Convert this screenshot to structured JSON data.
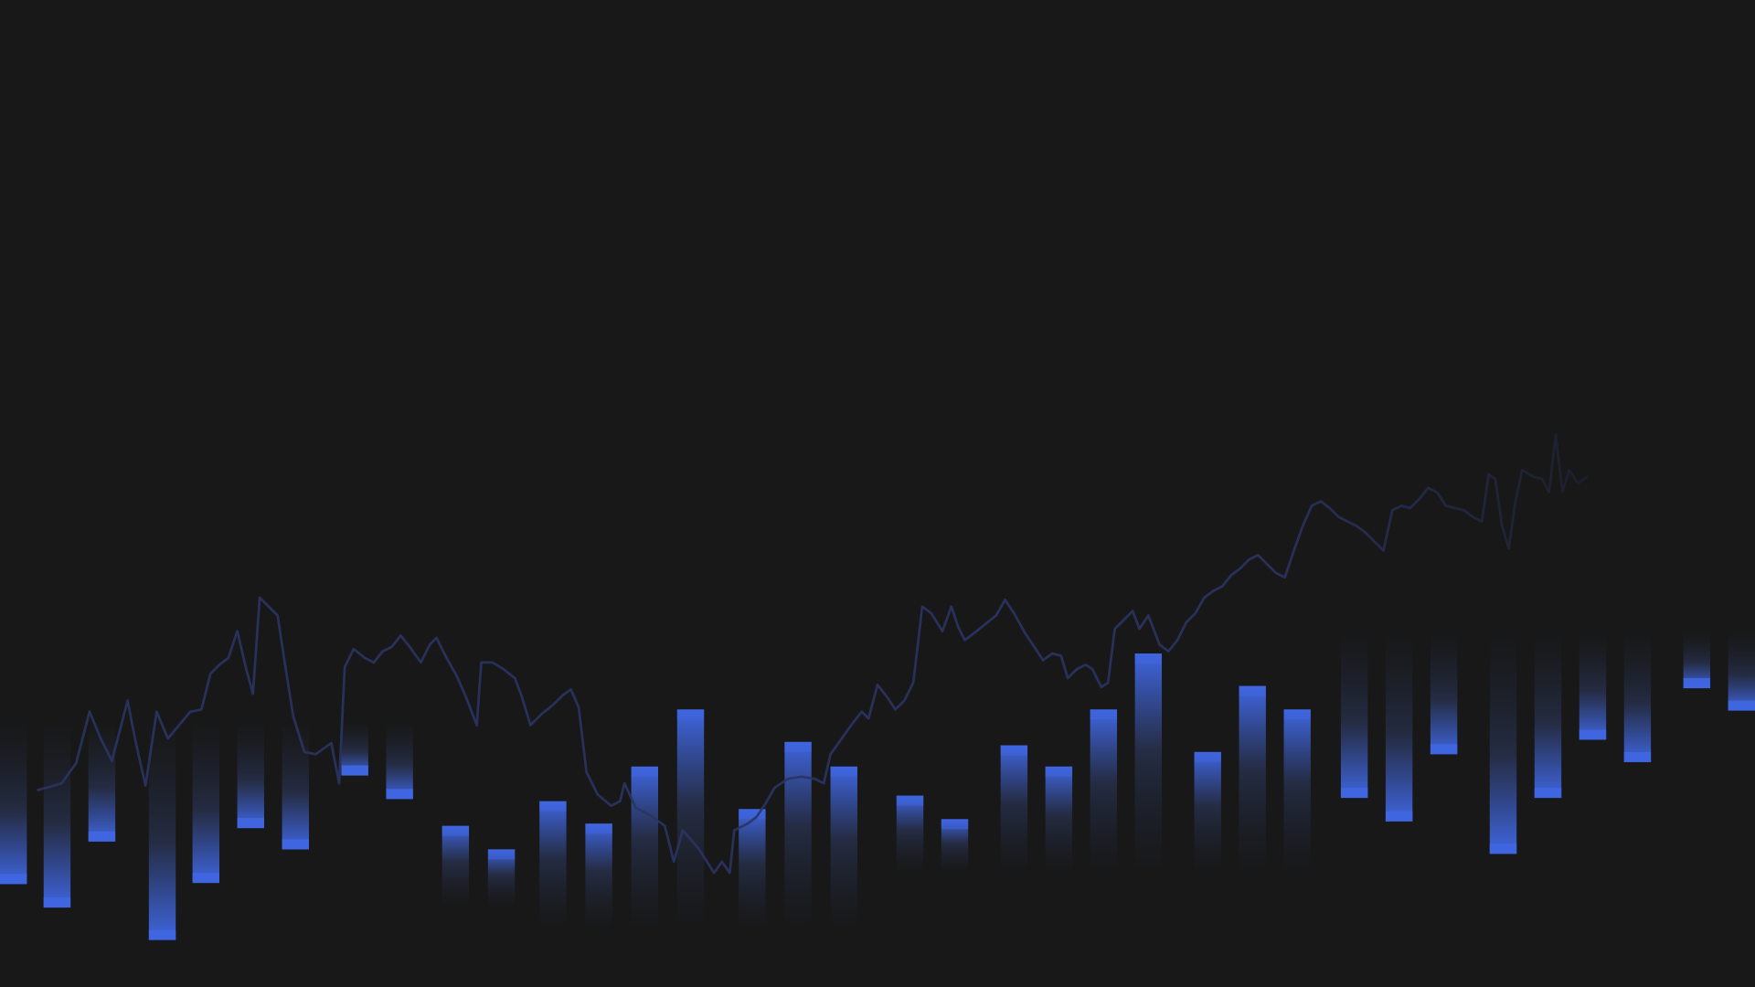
{
  "colors": {
    "background": "#181818",
    "bar_accent": "#3f66e0",
    "bar_fade": "#1f2433",
    "line": "#2a3463"
  },
  "chart_data": {
    "type": "bar",
    "title": "",
    "xlabel": "",
    "ylabel": "",
    "grid": false,
    "legend": "none",
    "x_range": [
      0,
      1568
    ],
    "y_range": [
      0,
      882
    ],
    "bars": [
      {
        "x": 12,
        "top": 645,
        "bottom": 790,
        "accent": "bottom"
      },
      {
        "x": 51,
        "top": 645,
        "bottom": 811,
        "accent": "bottom"
      },
      {
        "x": 91,
        "top": 645,
        "bottom": 752,
        "accent": "bottom"
      },
      {
        "x": 145,
        "top": 645,
        "bottom": 840,
        "accent": "bottom"
      },
      {
        "x": 184,
        "top": 645,
        "bottom": 789,
        "accent": "bottom"
      },
      {
        "x": 224,
        "top": 645,
        "bottom": 740,
        "accent": "bottom"
      },
      {
        "x": 264,
        "top": 645,
        "bottom": 759,
        "accent": "bottom"
      },
      {
        "x": 317,
        "top": 645,
        "bottom": 693,
        "accent": "bottom"
      },
      {
        "x": 357,
        "top": 645,
        "bottom": 714,
        "accent": "bottom"
      },
      {
        "x": 407,
        "top": 738,
        "bottom": 810,
        "accent": "top"
      },
      {
        "x": 448,
        "top": 759,
        "bottom": 810,
        "accent": "top"
      },
      {
        "x": 494,
        "top": 716,
        "bottom": 830,
        "accent": "top"
      },
      {
        "x": 535,
        "top": 736,
        "bottom": 830,
        "accent": "top"
      },
      {
        "x": 576,
        "top": 685,
        "bottom": 830,
        "accent": "top"
      },
      {
        "x": 617,
        "top": 634,
        "bottom": 830,
        "accent": "top"
      },
      {
        "x": 672,
        "top": 723,
        "bottom": 830,
        "accent": "top"
      },
      {
        "x": 713,
        "top": 663,
        "bottom": 830,
        "accent": "top"
      },
      {
        "x": 754,
        "top": 685,
        "bottom": 830,
        "accent": "top"
      },
      {
        "x": 813,
        "top": 711,
        "bottom": 780,
        "accent": "top"
      },
      {
        "x": 853,
        "top": 732,
        "bottom": 780,
        "accent": "top"
      },
      {
        "x": 906,
        "top": 666,
        "bottom": 780,
        "accent": "top"
      },
      {
        "x": 946,
        "top": 685,
        "bottom": 780,
        "accent": "top"
      },
      {
        "x": 986,
        "top": 634,
        "bottom": 780,
        "accent": "top"
      },
      {
        "x": 1026,
        "top": 584,
        "bottom": 780,
        "accent": "top"
      },
      {
        "x": 1079,
        "top": 672,
        "bottom": 780,
        "accent": "top"
      },
      {
        "x": 1119,
        "top": 613,
        "bottom": 780,
        "accent": "top"
      },
      {
        "x": 1159,
        "top": 634,
        "bottom": 780,
        "accent": "top"
      },
      {
        "x": 1210,
        "top": 565,
        "bottom": 713,
        "accent": "bottom"
      },
      {
        "x": 1250,
        "top": 565,
        "bottom": 734,
        "accent": "bottom"
      },
      {
        "x": 1290,
        "top": 565,
        "bottom": 674,
        "accent": "bottom"
      },
      {
        "x": 1343,
        "top": 565,
        "bottom": 763,
        "accent": "bottom"
      },
      {
        "x": 1383,
        "top": 565,
        "bottom": 713,
        "accent": "bottom"
      },
      {
        "x": 1423,
        "top": 565,
        "bottom": 661,
        "accent": "bottom"
      },
      {
        "x": 1463,
        "top": 565,
        "bottom": 681,
        "accent": "bottom"
      },
      {
        "x": 1516,
        "top": 565,
        "bottom": 615,
        "accent": "bottom"
      },
      {
        "x": 1556,
        "top": 565,
        "bottom": 635,
        "accent": "bottom"
      }
    ],
    "line": [
      [
        34,
        706
      ],
      [
        55,
        700
      ],
      [
        68,
        682
      ],
      [
        80,
        636
      ],
      [
        90,
        660
      ],
      [
        100,
        680
      ],
      [
        114,
        626
      ],
      [
        121,
        662
      ],
      [
        130,
        702
      ],
      [
        140,
        636
      ],
      [
        150,
        660
      ],
      [
        160,
        648
      ],
      [
        170,
        636
      ],
      [
        180,
        634
      ],
      [
        188,
        602
      ],
      [
        196,
        594
      ],
      [
        204,
        588
      ],
      [
        212,
        564
      ],
      [
        220,
        598
      ],
      [
        226,
        620
      ],
      [
        232,
        534
      ],
      [
        240,
        542
      ],
      [
        248,
        550
      ],
      [
        255,
        596
      ],
      [
        262,
        640
      ],
      [
        272,
        672
      ],
      [
        282,
        674
      ],
      [
        296,
        664
      ],
      [
        303,
        700
      ],
      [
        308,
        596
      ],
      [
        316,
        580
      ],
      [
        326,
        588
      ],
      [
        334,
        592
      ],
      [
        342,
        582
      ],
      [
        350,
        578
      ],
      [
        358,
        568
      ],
      [
        366,
        578
      ],
      [
        376,
        592
      ],
      [
        384,
        576
      ],
      [
        390,
        570
      ],
      [
        398,
        586
      ],
      [
        408,
        604
      ],
      [
        416,
        622
      ],
      [
        426,
        648
      ],
      [
        430,
        592
      ],
      [
        440,
        592
      ],
      [
        450,
        598
      ],
      [
        460,
        606
      ],
      [
        466,
        622
      ],
      [
        474,
        648
      ],
      [
        484,
        638
      ],
      [
        494,
        630
      ],
      [
        502,
        622
      ],
      [
        510,
        616
      ],
      [
        517,
        632
      ],
      [
        524,
        690
      ],
      [
        534,
        710
      ],
      [
        546,
        720
      ],
      [
        554,
        716
      ],
      [
        558,
        700
      ],
      [
        568,
        722
      ],
      [
        580,
        728
      ],
      [
        594,
        738
      ],
      [
        602,
        770
      ],
      [
        610,
        742
      ],
      [
        624,
        758
      ],
      [
        638,
        780
      ],
      [
        645,
        770
      ],
      [
        652,
        780
      ],
      [
        656,
        742
      ],
      [
        668,
        736
      ],
      [
        676,
        730
      ],
      [
        684,
        718
      ],
      [
        692,
        704
      ],
      [
        704,
        696
      ],
      [
        716,
        694
      ],
      [
        728,
        696
      ],
      [
        736,
        700
      ],
      [
        742,
        674
      ],
      [
        752,
        660
      ],
      [
        762,
        646
      ],
      [
        770,
        636
      ],
      [
        776,
        642
      ],
      [
        784,
        612
      ],
      [
        792,
        622
      ],
      [
        800,
        634
      ],
      [
        808,
        626
      ],
      [
        816,
        610
      ],
      [
        824,
        542
      ],
      [
        832,
        548
      ],
      [
        842,
        564
      ],
      [
        850,
        542
      ],
      [
        856,
        560
      ],
      [
        862,
        572
      ],
      [
        870,
        566
      ],
      [
        880,
        558
      ],
      [
        890,
        550
      ],
      [
        898,
        536
      ],
      [
        906,
        548
      ],
      [
        916,
        566
      ],
      [
        924,
        578
      ],
      [
        932,
        590
      ],
      [
        940,
        584
      ],
      [
        948,
        586
      ],
      [
        954,
        606
      ],
      [
        962,
        598
      ],
      [
        970,
        594
      ],
      [
        976,
        598
      ],
      [
        984,
        614
      ],
      [
        990,
        610
      ],
      [
        996,
        562
      ],
      [
        1004,
        554
      ],
      [
        1012,
        546
      ],
      [
        1018,
        562
      ],
      [
        1026,
        550
      ],
      [
        1036,
        576
      ],
      [
        1044,
        582
      ],
      [
        1052,
        572
      ],
      [
        1060,
        556
      ],
      [
        1068,
        548
      ],
      [
        1076,
        534
      ],
      [
        1084,
        528
      ],
      [
        1092,
        524
      ],
      [
        1100,
        514
      ],
      [
        1108,
        508
      ],
      [
        1116,
        500
      ],
      [
        1124,
        496
      ],
      [
        1132,
        504
      ],
      [
        1140,
        512
      ],
      [
        1148,
        516
      ],
      [
        1156,
        492
      ],
      [
        1164,
        470
      ],
      [
        1172,
        452
      ],
      [
        1180,
        448
      ],
      [
        1188,
        454
      ],
      [
        1196,
        462
      ],
      [
        1204,
        466
      ],
      [
        1212,
        470
      ],
      [
        1220,
        476
      ],
      [
        1228,
        484
      ],
      [
        1236,
        492
      ],
      [
        1244,
        456
      ],
      [
        1252,
        452
      ],
      [
        1260,
        454
      ],
      [
        1268,
        446
      ],
      [
        1276,
        436
      ],
      [
        1284,
        440
      ],
      [
        1292,
        452
      ],
      [
        1300,
        454
      ],
      [
        1308,
        456
      ],
      [
        1316,
        462
      ],
      [
        1324,
        466
      ],
      [
        1330,
        424
      ],
      [
        1336,
        428
      ],
      [
        1342,
        470
      ],
      [
        1348,
        490
      ],
      [
        1354,
        448
      ],
      [
        1360,
        420
      ],
      [
        1370,
        426
      ],
      [
        1378,
        428
      ],
      [
        1384,
        440
      ],
      [
        1390,
        388
      ],
      [
        1396,
        440
      ],
      [
        1402,
        420
      ],
      [
        1410,
        432
      ],
      [
        1418,
        426
      ]
    ]
  }
}
